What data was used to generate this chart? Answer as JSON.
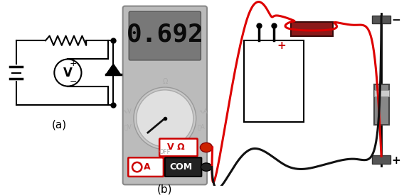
{
  "title_a": "(a)",
  "title_b": "(b)",
  "bg_color": "#ffffff",
  "display_text": "0.692",
  "wire_red": "#dd0000",
  "wire_black": "#111111",
  "mm_body": "#c0c0c0",
  "mm_display_bg": "#808080",
  "mm_display_text": "#111111",
  "dial_face": "#d8d8d8",
  "dial_border": "#999999",
  "needle_color": "#111111",
  "vohm_text": "#cc0000",
  "port_a_text": "#cc0000",
  "resistor_fill": "#8B1a1a",
  "diode_fill": "#888888",
  "diode_light_band": "#cccccc",
  "battery_border": "#111111",
  "lightning_fill": "#FFA500",
  "lightning_border": "#2255cc",
  "clip_color": "#555555"
}
